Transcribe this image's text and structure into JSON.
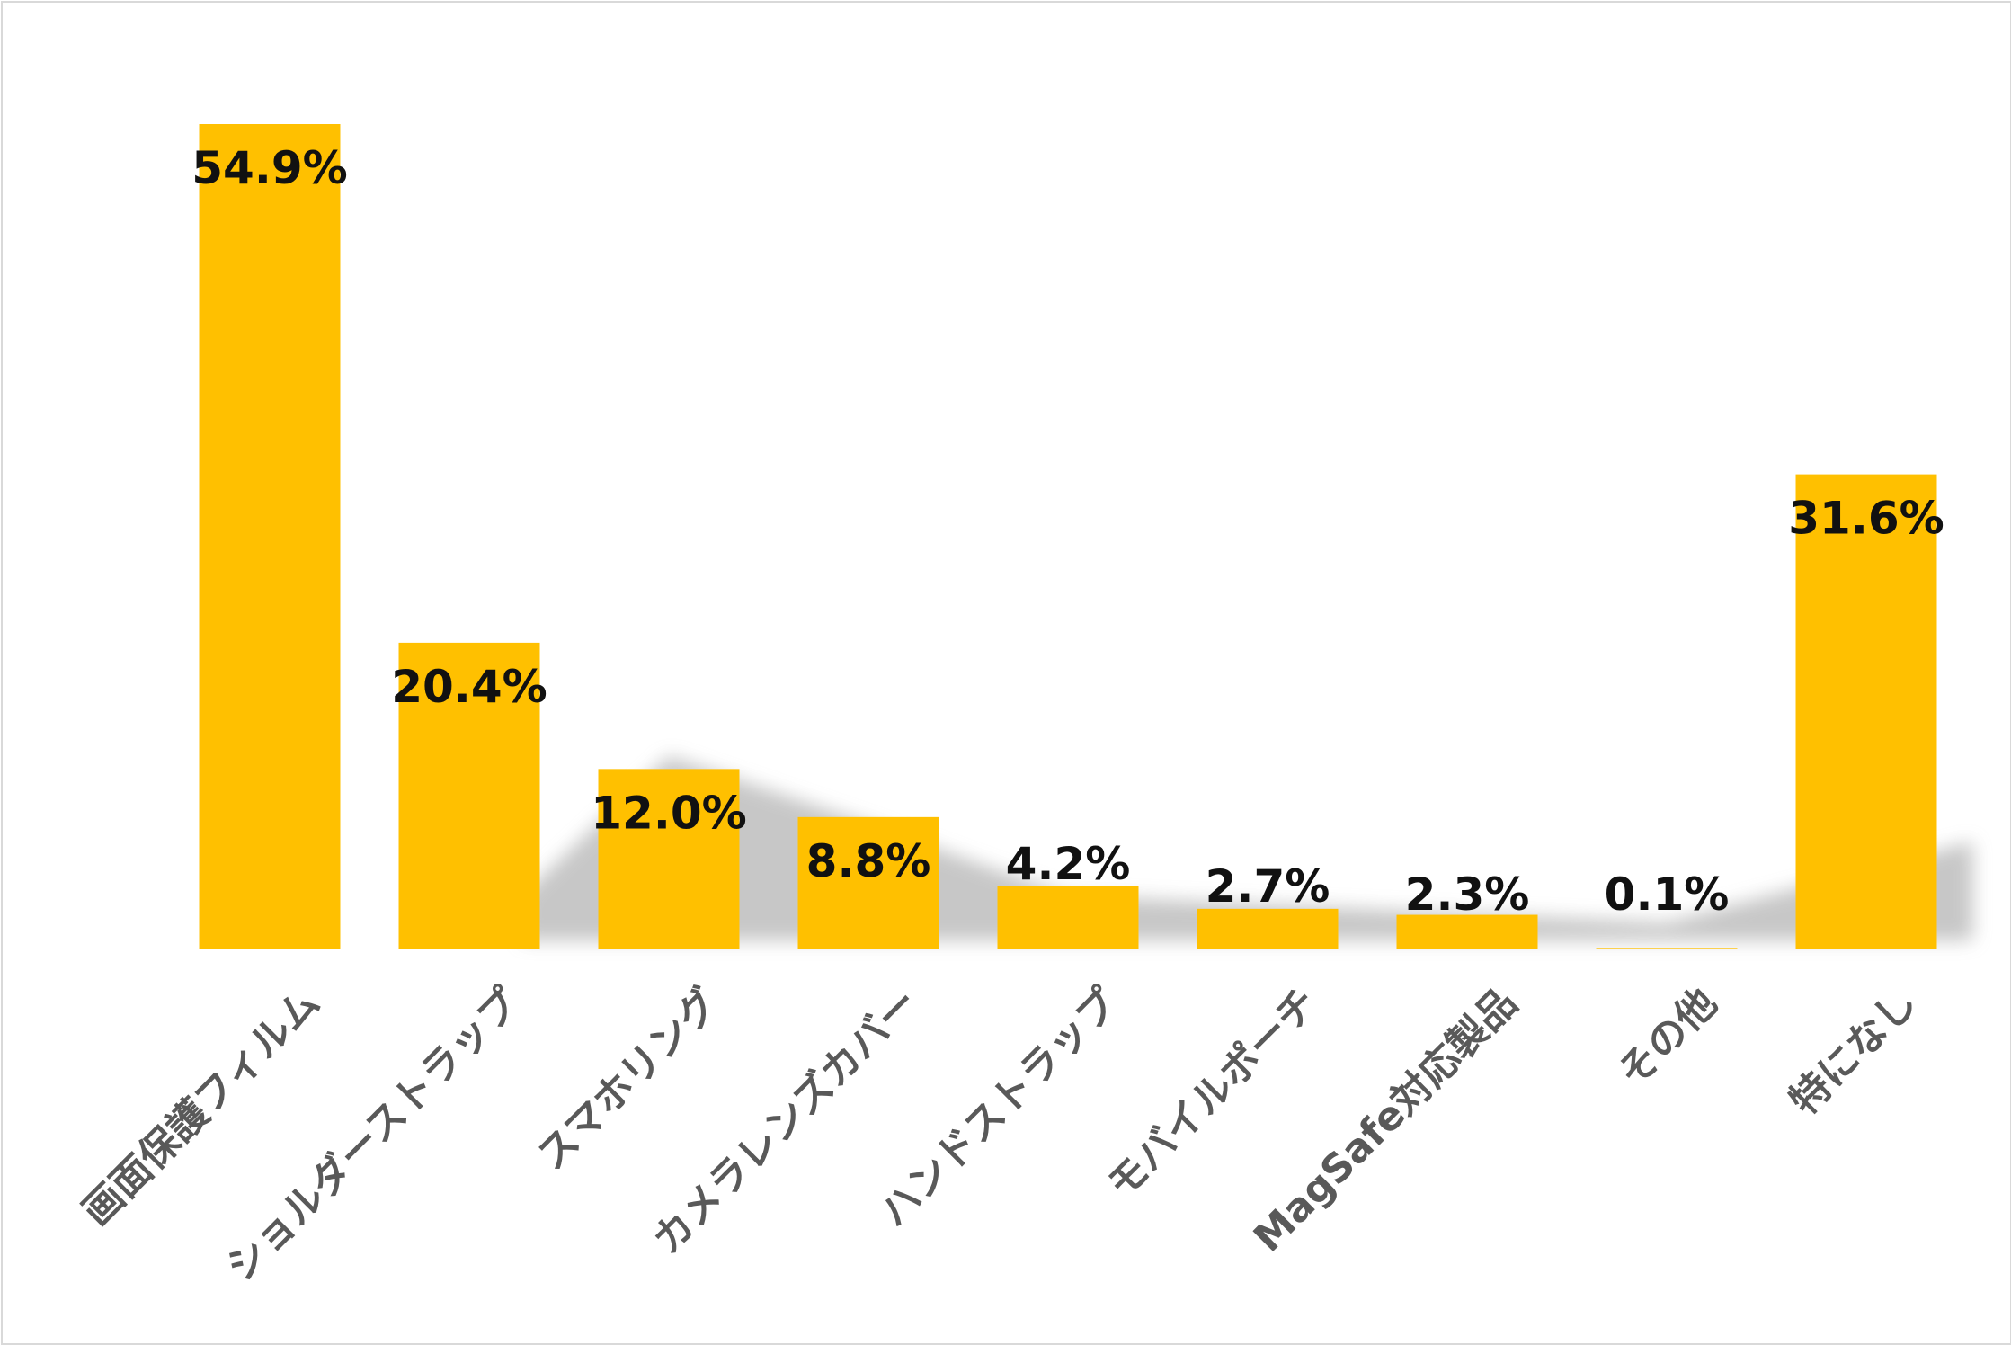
{
  "chart_data": {
    "type": "bar",
    "categories": [
      "画面保護フィルム",
      "ショルダーストラップ",
      "スマホリング",
      "カメラレンズカバー",
      "ハンドストラップ",
      "モバイルポーチ",
      "MagSafe対応製品",
      "その他",
      "特になし"
    ],
    "values": [
      54.9,
      20.4,
      12.0,
      8.8,
      4.2,
      2.7,
      2.3,
      0.1,
      31.6
    ],
    "data_labels": [
      "54.9%",
      "20.4%",
      "12.0%",
      "8.8%",
      "4.2%",
      "2.7%",
      "2.3%",
      "0.1%",
      "31.6%"
    ],
    "title": "",
    "xlabel": "",
    "ylabel": "",
    "ylim": [
      0,
      54.9
    ],
    "grid": false,
    "legend": "none",
    "bar_color": "#FFC000",
    "label_color": "#111111",
    "category_label_color": "#595959"
  }
}
